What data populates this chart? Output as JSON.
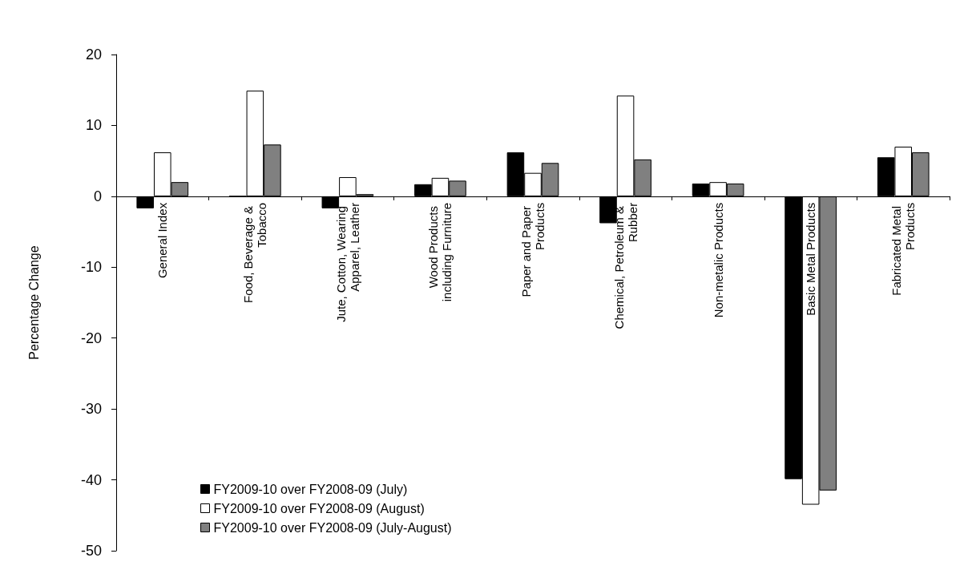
{
  "chart_data": {
    "type": "bar",
    "ylabel": "Percentage Change",
    "categories": [
      "General Index",
      "Food, Beverage & Tobacco",
      "Jute, Cotton, Wearing Apparel, Leather",
      "Wood Products including Furniture",
      "Paper and Paper Products",
      "Chemical, Petroleum & Rubber",
      "Non-metalic Products",
      "Basic Metal Products",
      "Fabricated Metal Products"
    ],
    "series": [
      {
        "name": "FY2009-10 over FY2008-09 (July)",
        "color": "#000000",
        "values": [
          -1.7,
          0,
          -1.7,
          1.7,
          6.2,
          -3.8,
          1.8,
          -39.9,
          5.5
        ]
      },
      {
        "name": "FY2009-10 over FY2008-09 (August)",
        "color": "#ffffff",
        "values": [
          6.2,
          14.9,
          2.7,
          2.6,
          3.3,
          14.2,
          2.0,
          -43.5,
          7.0
        ]
      },
      {
        "name": "FY2009-10 over FY2008-09 (July-August)",
        "color": "#808080",
        "values": [
          2.0,
          7.3,
          0.3,
          2.2,
          4.7,
          5.2,
          1.8,
          -41.5,
          6.2
        ]
      }
    ],
    "ylim": [
      -50,
      20
    ],
    "yticks": [
      -50,
      -40,
      -30,
      -20,
      -10,
      0,
      10,
      20
    ],
    "grid": false,
    "legend": "bottom left"
  }
}
